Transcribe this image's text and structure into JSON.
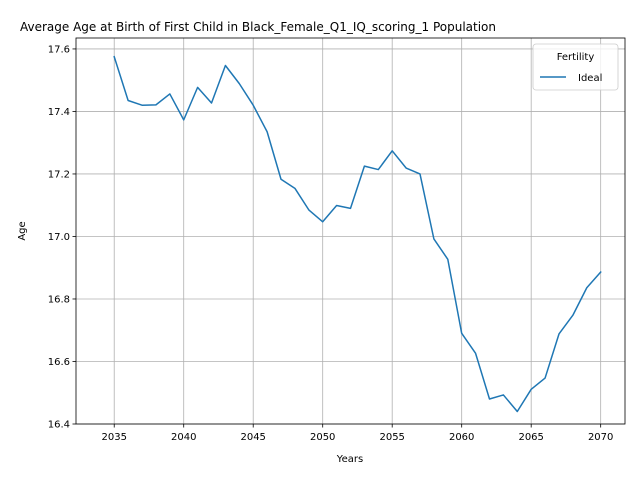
{
  "chart_data": {
    "type": "line",
    "title": "Average Age at Birth of First Child in Black_Female_Q1_IQ_scoring_1 Population",
    "xlabel": "Years",
    "ylabel": "Age",
    "xlim": [
      2032.25,
      2071.75
    ],
    "ylim": [
      16.4,
      17.635
    ],
    "x_ticks": [
      2035,
      2040,
      2045,
      2050,
      2055,
      2060,
      2065,
      2070
    ],
    "y_ticks": [
      16.4,
      16.6,
      16.8,
      17.0,
      17.2,
      17.4,
      17.6
    ],
    "grid": true,
    "legend": {
      "title": "Fertility",
      "placement": "top-right"
    },
    "series": [
      {
        "name": "Ideal",
        "color": "#1f77b4",
        "x": [
          2035,
          2036,
          2037,
          2038,
          2039,
          2040,
          2041,
          2042,
          2043,
          2044,
          2045,
          2046,
          2047,
          2048,
          2049,
          2050,
          2051,
          2052,
          2053,
          2054,
          2055,
          2056,
          2057,
          2058,
          2059,
          2060,
          2061,
          2062,
          2063,
          2064,
          2065,
          2066,
          2067,
          2068,
          2069,
          2070
        ],
        "y": [
          17.575,
          17.435,
          17.42,
          17.421,
          17.456,
          17.373,
          17.477,
          17.427,
          17.547,
          17.489,
          17.42,
          17.335,
          17.183,
          17.154,
          17.085,
          17.047,
          17.099,
          17.09,
          17.225,
          17.214,
          17.274,
          17.219,
          17.2,
          16.992,
          16.927,
          16.69,
          16.626,
          16.48,
          16.493,
          16.44,
          16.511,
          16.547,
          16.688,
          16.748,
          16.836,
          16.886
        ]
      }
    ]
  }
}
